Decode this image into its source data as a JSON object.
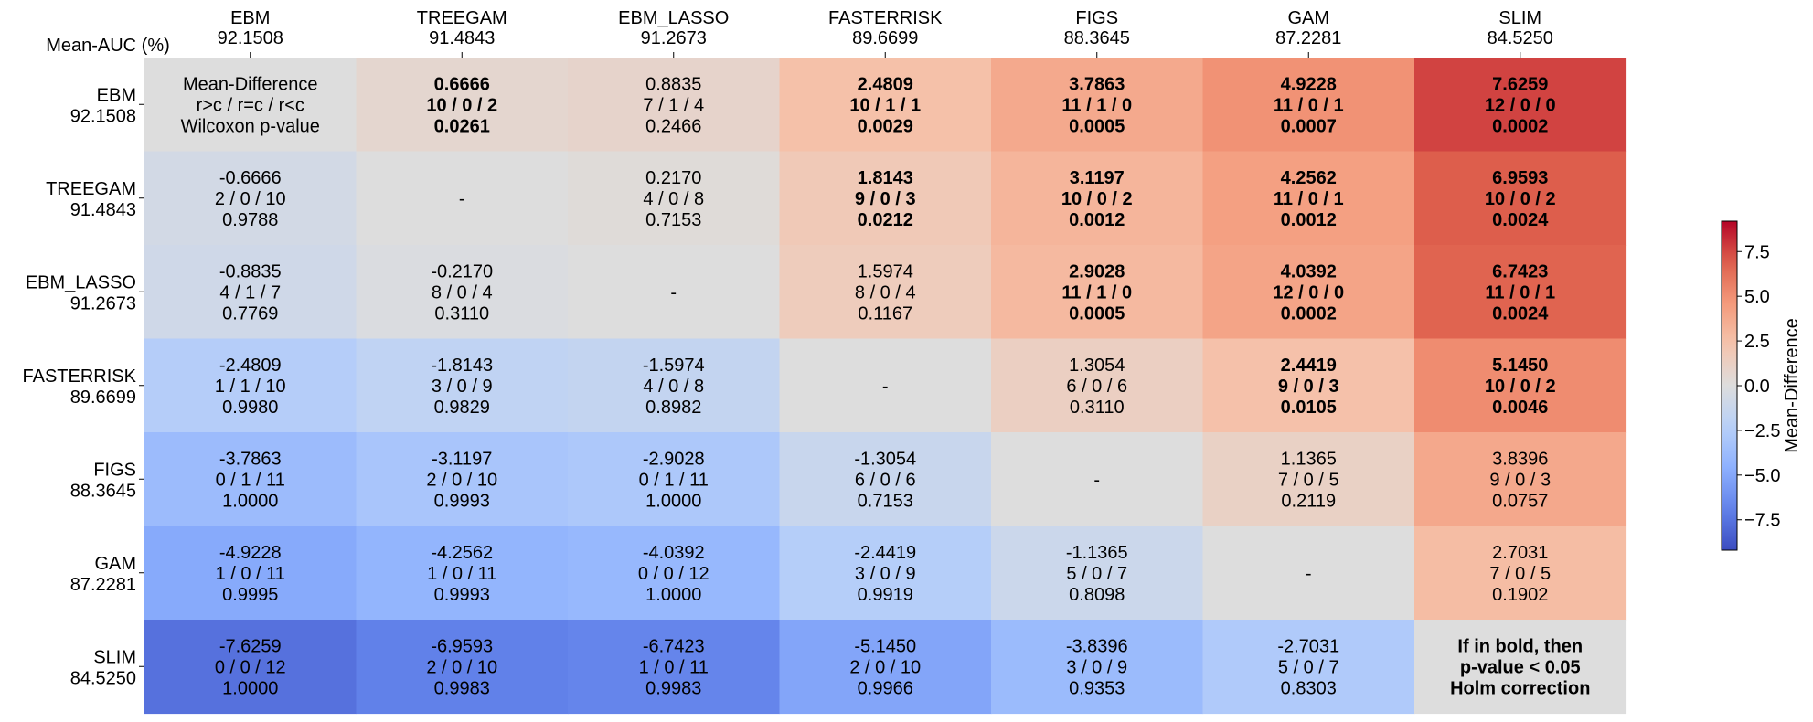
{
  "chart_data": {
    "type": "heatmap",
    "corner_label": "Mean-AUC (%)",
    "models": [
      "EBM",
      "TREEGAM",
      "EBM_LASSO",
      "FASTERRISK",
      "FIGS",
      "GAM",
      "SLIM"
    ],
    "mean_auc": [
      "92.1508",
      "91.4843",
      "91.2673",
      "89.6699",
      "88.3645",
      "87.2281",
      "84.5250"
    ],
    "colorbar": {
      "label": "Mean-Difference",
      "min": -9.2,
      "max": 9.2,
      "ticks": [
        "7.5",
        "5.0",
        "2.5",
        "0.0",
        "−2.5",
        "−5.0",
        "−7.5"
      ],
      "tick_values": [
        7.5,
        5.0,
        2.5,
        0.0,
        -2.5,
        -5.0,
        -7.5
      ],
      "colormap": "coolwarm"
    },
    "diagonal_legend": {
      "first": [
        "Mean-Difference",
        "r>c / r=c / r<c",
        "Wilcoxon p-value"
      ],
      "last": [
        "If in bold, then",
        "p-value < 0.05",
        "Holm correction"
      ]
    },
    "diagonal_placeholder": "-",
    "cells": [
      [
        {
          "d": 0,
          "t": "Mean-Difference",
          "w": "",
          "p": "",
          "bold": false
        },
        {
          "d": 0.6666,
          "t": "0.6666",
          "w": "10 / 0 / 2",
          "p": "0.0261",
          "bold": true
        },
        {
          "d": 0.8835,
          "t": "0.8835",
          "w": "7 / 1 / 4",
          "p": "0.2466",
          "bold": false
        },
        {
          "d": 2.4809,
          "t": "2.4809",
          "w": "10 / 1 / 1",
          "p": "0.0029",
          "bold": true
        },
        {
          "d": 3.7863,
          "t": "3.7863",
          "w": "11 / 1 / 0",
          "p": "0.0005",
          "bold": true
        },
        {
          "d": 4.9228,
          "t": "4.9228",
          "w": "11 / 0 / 1",
          "p": "0.0007",
          "bold": true
        },
        {
          "d": 7.6259,
          "t": "7.6259",
          "w": "12 / 0 / 0",
          "p": "0.0002",
          "bold": true
        }
      ],
      [
        {
          "d": -0.6666,
          "t": "-0.6666",
          "w": "2 / 0 / 10",
          "p": "0.9788",
          "bold": false
        },
        {
          "d": 0,
          "t": "-",
          "w": "",
          "p": "",
          "bold": false
        },
        {
          "d": 0.217,
          "t": "0.2170",
          "w": "4 / 0 / 8",
          "p": "0.7153",
          "bold": false
        },
        {
          "d": 1.8143,
          "t": "1.8143",
          "w": "9 / 0 / 3",
          "p": "0.0212",
          "bold": true
        },
        {
          "d": 3.1197,
          "t": "3.1197",
          "w": "10 / 0 / 2",
          "p": "0.0012",
          "bold": true
        },
        {
          "d": 4.2562,
          "t": "4.2562",
          "w": "11 / 0 / 1",
          "p": "0.0012",
          "bold": true
        },
        {
          "d": 6.9593,
          "t": "6.9593",
          "w": "10 / 0 / 2",
          "p": "0.0024",
          "bold": true
        }
      ],
      [
        {
          "d": -0.8835,
          "t": "-0.8835",
          "w": "4 / 1 / 7",
          "p": "0.7769",
          "bold": false
        },
        {
          "d": -0.217,
          "t": "-0.2170",
          "w": "8 / 0 / 4",
          "p": "0.3110",
          "bold": false
        },
        {
          "d": 0,
          "t": "-",
          "w": "",
          "p": "",
          "bold": false
        },
        {
          "d": 1.5974,
          "t": "1.5974",
          "w": "8 / 0 / 4",
          "p": "0.1167",
          "bold": false
        },
        {
          "d": 2.9028,
          "t": "2.9028",
          "w": "11 / 1 / 0",
          "p": "0.0005",
          "bold": true
        },
        {
          "d": 4.0392,
          "t": "4.0392",
          "w": "12 / 0 / 0",
          "p": "0.0002",
          "bold": true
        },
        {
          "d": 6.7423,
          "t": "6.7423",
          "w": "11 / 0 / 1",
          "p": "0.0024",
          "bold": true
        }
      ],
      [
        {
          "d": -2.4809,
          "t": "-2.4809",
          "w": "1 / 1 / 10",
          "p": "0.9980",
          "bold": false
        },
        {
          "d": -1.8143,
          "t": "-1.8143",
          "w": "3 / 0 / 9",
          "p": "0.9829",
          "bold": false
        },
        {
          "d": -1.5974,
          "t": "-1.5974",
          "w": "4 / 0 / 8",
          "p": "0.8982",
          "bold": false
        },
        {
          "d": 0,
          "t": "-",
          "w": "",
          "p": "",
          "bold": false
        },
        {
          "d": 1.3054,
          "t": "1.3054",
          "w": "6 / 0 / 6",
          "p": "0.3110",
          "bold": false
        },
        {
          "d": 2.4419,
          "t": "2.4419",
          "w": "9 / 0 / 3",
          "p": "0.0105",
          "bold": true
        },
        {
          "d": 5.145,
          "t": "5.1450",
          "w": "10 / 0 / 2",
          "p": "0.0046",
          "bold": true
        }
      ],
      [
        {
          "d": -3.7863,
          "t": "-3.7863",
          "w": "0 / 1 / 11",
          "p": "1.0000",
          "bold": false
        },
        {
          "d": -3.1197,
          "t": "-3.1197",
          "w": "2 / 0 / 10",
          "p": "0.9993",
          "bold": false
        },
        {
          "d": -2.9028,
          "t": "-2.9028",
          "w": "0 / 1 / 11",
          "p": "1.0000",
          "bold": false
        },
        {
          "d": -1.3054,
          "t": "-1.3054",
          "w": "6 / 0 / 6",
          "p": "0.7153",
          "bold": false
        },
        {
          "d": 0,
          "t": "-",
          "w": "",
          "p": "",
          "bold": false
        },
        {
          "d": 1.1365,
          "t": "1.1365",
          "w": "7 / 0 / 5",
          "p": "0.2119",
          "bold": false
        },
        {
          "d": 3.8396,
          "t": "3.8396",
          "w": "9 / 0 / 3",
          "p": "0.0757",
          "bold": false
        }
      ],
      [
        {
          "d": -4.9228,
          "t": "-4.9228",
          "w": "1 / 0 / 11",
          "p": "0.9995",
          "bold": false
        },
        {
          "d": -4.2562,
          "t": "-4.2562",
          "w": "1 / 0 / 11",
          "p": "0.9993",
          "bold": false
        },
        {
          "d": -4.0392,
          "t": "-4.0392",
          "w": "0 / 0 / 12",
          "p": "1.0000",
          "bold": false
        },
        {
          "d": -2.4419,
          "t": "-2.4419",
          "w": "3 / 0 / 9",
          "p": "0.9919",
          "bold": false
        },
        {
          "d": -1.1365,
          "t": "-1.1365",
          "w": "5 / 0 / 7",
          "p": "0.8098",
          "bold": false
        },
        {
          "d": 0,
          "t": "-",
          "w": "",
          "p": "",
          "bold": false
        },
        {
          "d": 2.7031,
          "t": "2.7031",
          "w": "7 / 0 / 5",
          "p": "0.1902",
          "bold": false
        }
      ],
      [
        {
          "d": -7.6259,
          "t": "-7.6259",
          "w": "0 / 0 / 12",
          "p": "1.0000",
          "bold": false
        },
        {
          "d": -6.9593,
          "t": "-6.9593",
          "w": "2 / 0 / 10",
          "p": "0.9983",
          "bold": false
        },
        {
          "d": -6.7423,
          "t": "-6.7423",
          "w": "1 / 0 / 11",
          "p": "0.9983",
          "bold": false
        },
        {
          "d": -5.145,
          "t": "-5.1450",
          "w": "2 / 0 / 10",
          "p": "0.9966",
          "bold": false
        },
        {
          "d": -3.8396,
          "t": "-3.8396",
          "w": "3 / 0 / 9",
          "p": "0.9353",
          "bold": false
        },
        {
          "d": -2.7031,
          "t": "-2.7031",
          "w": "5 / 0 / 7",
          "p": "0.8303",
          "bold": false
        },
        {
          "d": 0,
          "t": "If in bold, then",
          "w": "",
          "p": "",
          "bold": true
        }
      ]
    ]
  }
}
